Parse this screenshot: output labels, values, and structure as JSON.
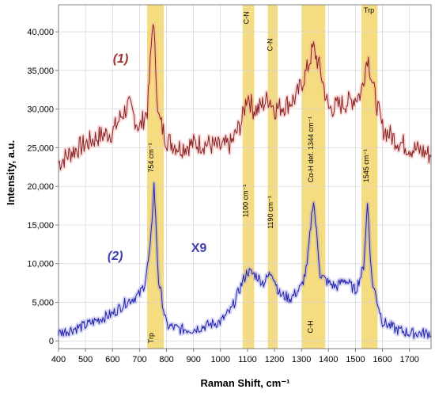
{
  "chart_data": {
    "type": "line",
    "xlabel": "Raman Shift, cm⁻¹",
    "ylabel": "Intensity, a.u.",
    "xlim": [
      400,
      1780
    ],
    "ylim": [
      -1000,
      43500
    ],
    "x_ticks": [
      400,
      500,
      600,
      700,
      800,
      900,
      1000,
      1100,
      1200,
      1300,
      1400,
      1500,
      1600,
      1700
    ],
    "y_ticks": [
      0,
      5000,
      10000,
      15000,
      20000,
      25000,
      30000,
      35000,
      40000
    ],
    "y_tick_labels": [
      "0",
      "5,000",
      "10,000",
      "15,000",
      "20,000",
      "25,000",
      "30,000",
      "35,000",
      "40,000"
    ],
    "grid": true,
    "highlight_bands": [
      {
        "from": 728,
        "to": 790
      },
      {
        "from": 1082,
        "to": 1125
      },
      {
        "from": 1175,
        "to": 1212
      },
      {
        "from": 1302,
        "to": 1388
      },
      {
        "from": 1522,
        "to": 1582
      }
    ],
    "colors": {
      "series1": "#8b2020",
      "series1_band": "#f0a0a0",
      "series2": "#2020b0",
      "series2_band": "#9090e0",
      "highlight": "#f5d66a",
      "series1_label": "#a03030",
      "series2_label": "#4040b0"
    },
    "series": [
      {
        "label": "(1)",
        "x": [
          400,
          450,
          500,
          550,
          600,
          630,
          660,
          700,
          730,
          750,
          770,
          800,
          850,
          900,
          950,
          1000,
          1040,
          1080,
          1100,
          1120,
          1140,
          1180,
          1200,
          1240,
          1280,
          1320,
          1344,
          1370,
          1400,
          1440,
          1480,
          1520,
          1545,
          1570,
          1600,
          1650,
          1700,
          1750,
          1780
        ],
        "y": [
          23000,
          24500,
          25500,
          26500,
          27000,
          29000,
          30500,
          27500,
          30000,
          42000,
          29000,
          26000,
          25000,
          25500,
          25500,
          25000,
          25500,
          28500,
          32000,
          30000,
          30000,
          31500,
          30000,
          30500,
          31500,
          35000,
          38000,
          35000,
          30000,
          30500,
          31000,
          32000,
          37000,
          32000,
          27500,
          26000,
          25000,
          24500,
          24000
        ]
      },
      {
        "label": "(2)",
        "x": [
          400,
          450,
          500,
          550,
          600,
          650,
          700,
          720,
          740,
          754,
          770,
          800,
          850,
          900,
          950,
          1000,
          1040,
          1080,
          1100,
          1130,
          1160,
          1190,
          1220,
          1260,
          1300,
          1320,
          1344,
          1370,
          1400,
          1430,
          1460,
          1500,
          1530,
          1545,
          1560,
          1600,
          1650,
          1700,
          1750,
          1780
        ],
        "y": [
          1000,
          1500,
          2000,
          2800,
          3500,
          5000,
          6000,
          7500,
          12000,
          20500,
          8000,
          2000,
          1500,
          1500,
          2000,
          2500,
          4000,
          7500,
          9000,
          8500,
          7500,
          9000,
          6000,
          5500,
          7000,
          9500,
          18500,
          8500,
          7500,
          7000,
          8000,
          6500,
          9500,
          18000,
          8000,
          2500,
          1500,
          1000,
          1000,
          1000
        ]
      }
    ],
    "annotations": [
      {
        "text": "754 cm⁻¹",
        "x": 752,
        "y": 21800,
        "rotate": true
      },
      {
        "text": "Trp",
        "x": 752,
        "y": -300,
        "rotate": true
      },
      {
        "text": "C-N",
        "x": 1105,
        "y": 41000,
        "rotate": true
      },
      {
        "text": "1100 cm⁻¹",
        "x": 1102,
        "y": 16000,
        "rotate": true
      },
      {
        "text": "C-N",
        "x": 1192,
        "y": 37500,
        "rotate": true
      },
      {
        "text": "1190 cm⁻¹",
        "x": 1194,
        "y": 14500,
        "rotate": true
      },
      {
        "text": "Cα-H def. 1344 cm⁻¹",
        "x": 1344,
        "y": 20500,
        "rotate": true
      },
      {
        "text": "C-H",
        "x": 1342,
        "y": 1000,
        "rotate": true
      },
      {
        "text": "Trp",
        "x": 1550,
        "y": 42500,
        "rotate": false
      },
      {
        "text": "1545 cm⁻¹",
        "x": 1548,
        "y": 20500,
        "rotate": true
      },
      {
        "text": "(1)",
        "x": 630,
        "y": 36000,
        "rotate": false,
        "cls": "curve-label",
        "color_key": "series1_label"
      },
      {
        "text": "(2)",
        "x": 610,
        "y": 10500,
        "rotate": false,
        "cls": "curve-label",
        "color_key": "series2_label"
      },
      {
        "text": "X9",
        "x": 920,
        "y": 11500,
        "rotate": false,
        "cls": "x9",
        "color_key": "series2_label"
      }
    ]
  }
}
